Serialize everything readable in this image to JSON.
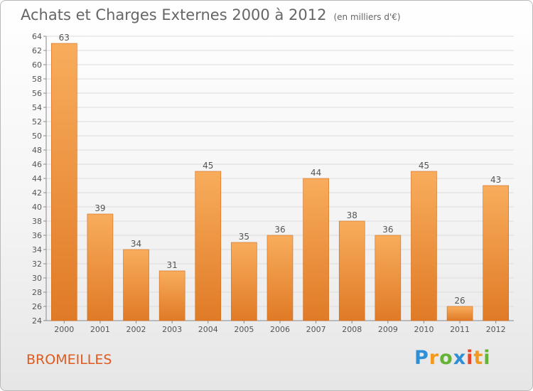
{
  "header": {
    "title": "Achats et Charges Externes 2000 à 2012",
    "subtitle": "(en milliers d'€)"
  },
  "commune": "BROMEILLES",
  "logo": {
    "text": "Proxiti",
    "letters": [
      {
        "ch": "P",
        "color": "#2f8fd6"
      },
      {
        "ch": "r",
        "color": "#f29a1d"
      },
      {
        "ch": "o",
        "color": "#64b337"
      },
      {
        "ch": "x",
        "color": "#2f8fd6"
      },
      {
        "ch": "i",
        "color": "#e8462b"
      },
      {
        "ch": "t",
        "color": "#f29a1d"
      },
      {
        "ch": "i",
        "color": "#64b337"
      }
    ]
  },
  "chart_data": {
    "type": "bar",
    "categories": [
      "2000",
      "2001",
      "2002",
      "2003",
      "2004",
      "2005",
      "2006",
      "2007",
      "2008",
      "2009",
      "2010",
      "2011",
      "2012"
    ],
    "values": [
      63,
      39,
      34,
      31,
      45,
      35,
      36,
      44,
      38,
      36,
      45,
      26,
      43
    ],
    "ylim": [
      24,
      64
    ],
    "yticks": [
      24,
      26,
      28,
      30,
      32,
      34,
      36,
      38,
      40,
      42,
      44,
      46,
      48,
      50,
      52,
      54,
      56,
      58,
      60,
      62,
      64
    ],
    "bar_color_light": "#f8ad5c",
    "bar_color_dark": "#e07a26",
    "grid": true
  }
}
